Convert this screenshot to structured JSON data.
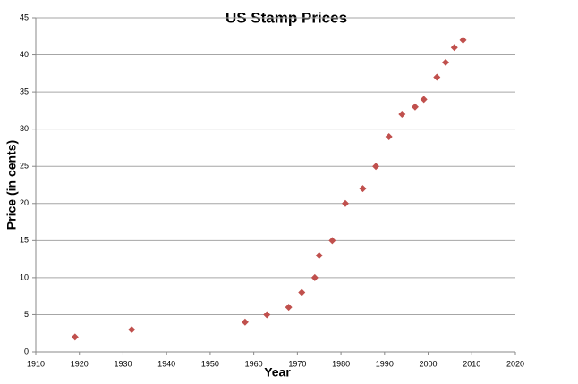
{
  "chart_data": {
    "type": "scatter",
    "title": "US Stamp Prices",
    "x_label": "Year",
    "y_label": "Price (in cents)",
    "series": [
      {
        "name": "Price",
        "color": "#c0504d",
        "x": [
          1919,
          1932,
          1958,
          1963,
          1968,
          1971,
          1974,
          1975,
          1978,
          1981,
          1985,
          1988,
          1991,
          1994,
          1997,
          1999,
          2002,
          2004,
          2006,
          2008
        ],
        "values": [
          2,
          3,
          4,
          5,
          6,
          8,
          10,
          13,
          15,
          20,
          22,
          25,
          29,
          32,
          33,
          34,
          37,
          39,
          41,
          42
        ]
      }
    ],
    "xlim": [
      1910,
      2020
    ],
    "xticks": [
      1910,
      1920,
      1930,
      1940,
      1950,
      1960,
      1970,
      1980,
      1990,
      2000,
      2010,
      2020
    ],
    "ylim": [
      0,
      45
    ],
    "yticks": [
      0,
      5,
      10,
      15,
      20,
      25,
      30,
      35,
      40,
      45
    ],
    "grid": true
  }
}
